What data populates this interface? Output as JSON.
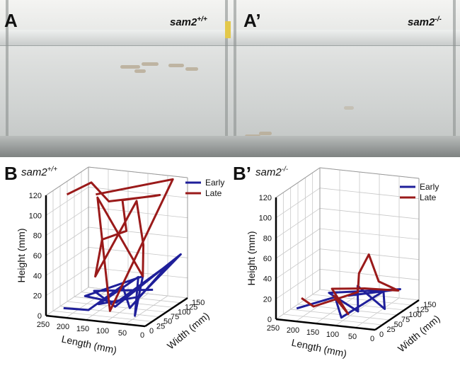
{
  "panels": {
    "A": {
      "letter": "A",
      "genotype": "sam2",
      "genotype_sup": "+/+"
    },
    "A2": {
      "letter": "A’",
      "genotype": "sam2",
      "genotype_sup": "-/-"
    },
    "B": {
      "letter": "B",
      "genotype": "sam2",
      "genotype_sup": "+/+"
    },
    "B2": {
      "letter": "B’",
      "genotype": "sam2",
      "genotype_sup": "-/-"
    }
  },
  "colors": {
    "early": "#1f1f9a",
    "late": "#9a1a1a"
  },
  "chart_data": [
    {
      "type": "line3d",
      "panel": "B",
      "xlabel": "Length (mm)",
      "ylabel": "Width (mm)",
      "zlabel": "Height (mm)",
      "x_ticks": [
        "250",
        "200",
        "150",
        "100",
        "50",
        "0"
      ],
      "y_ticks": [
        "0",
        "25",
        "50",
        "75",
        "100",
        "125",
        "150"
      ],
      "z_ticks": [
        "0",
        "20",
        "40",
        "60",
        "80",
        "100",
        "120"
      ],
      "xlim": [
        250,
        0
      ],
      "ylim": [
        0,
        150
      ],
      "zlim": [
        0,
        120
      ],
      "grid": true,
      "legend_position": "top-right",
      "series": [
        {
          "name": "Early",
          "color": "#1f1f9a",
          "points": [
            [
              220,
              20,
              5
            ],
            [
              150,
              10,
              8
            ],
            [
              100,
              60,
              25
            ],
            [
              60,
              30,
              10
            ],
            [
              20,
              110,
              40
            ],
            [
              130,
              80,
              3
            ],
            [
              180,
              40,
              15
            ],
            [
              70,
              90,
              30
            ],
            [
              40,
              20,
              5
            ],
            [
              110,
              130,
              20
            ],
            [
              160,
              60,
              4
            ],
            [
              50,
              50,
              18
            ],
            [
              10,
              140,
              45
            ],
            [
              90,
              20,
              12
            ],
            [
              200,
              100,
              8
            ],
            [
              30,
              70,
              22
            ]
          ]
        },
        {
          "name": "Late",
          "color": "#9a1a1a",
          "points": [
            [
              240,
              60,
              110
            ],
            [
              200,
              90,
              118
            ],
            [
              120,
              40,
              112
            ],
            [
              60,
              120,
              105
            ],
            [
              20,
              80,
              115
            ],
            [
              150,
              130,
              95
            ],
            [
              90,
              60,
              80
            ],
            [
              180,
              100,
              60
            ],
            [
              140,
              20,
              40
            ],
            [
              100,
              110,
              100
            ],
            [
              40,
              50,
              70
            ],
            [
              70,
              90,
              30
            ],
            [
              170,
              70,
              108
            ],
            [
              110,
              30,
              5
            ],
            [
              30,
              140,
              119
            ],
            [
              210,
              120,
              100
            ]
          ]
        }
      ]
    },
    {
      "type": "line3d",
      "panel": "B2",
      "xlabel": "Length (mm)",
      "ylabel": "Width (mm)",
      "zlabel": "Height (mm)",
      "x_ticks": [
        "250",
        "200",
        "150",
        "100",
        "50",
        "0"
      ],
      "y_ticks": [
        "0",
        "25",
        "50",
        "75",
        "100",
        "125",
        "150"
      ],
      "z_ticks": [
        "0",
        "20",
        "40",
        "60",
        "80",
        "100",
        "120"
      ],
      "xlim": [
        250,
        0
      ],
      "ylim": [
        0,
        150
      ],
      "zlim": [
        0,
        120
      ],
      "grid": true,
      "legend_position": "top-right",
      "series": [
        {
          "name": "Early",
          "color": "#1f1f9a",
          "points": [
            [
              220,
              30,
              6
            ],
            [
              160,
              80,
              10
            ],
            [
              100,
              20,
              4
            ],
            [
              60,
              110,
              14
            ],
            [
              20,
              60,
              8
            ],
            [
              140,
              130,
              12
            ],
            [
              80,
              50,
              5
            ],
            [
              190,
              100,
              9
            ],
            [
              40,
              140,
              11
            ],
            [
              120,
              70,
              15
            ]
          ]
        },
        {
          "name": "Late",
          "color": "#9a1a1a",
          "points": [
            [
              230,
              60,
              10
            ],
            [
              170,
              20,
              12
            ],
            [
              110,
              90,
              15
            ],
            [
              70,
              40,
              45
            ],
            [
              60,
              60,
              60
            ],
            [
              50,
              80,
              30
            ],
            [
              30,
              120,
              14
            ],
            [
              130,
              140,
              8
            ],
            [
              190,
              110,
              11
            ],
            [
              90,
              30,
              6
            ],
            [
              150,
              60,
              16
            ]
          ]
        }
      ]
    }
  ]
}
